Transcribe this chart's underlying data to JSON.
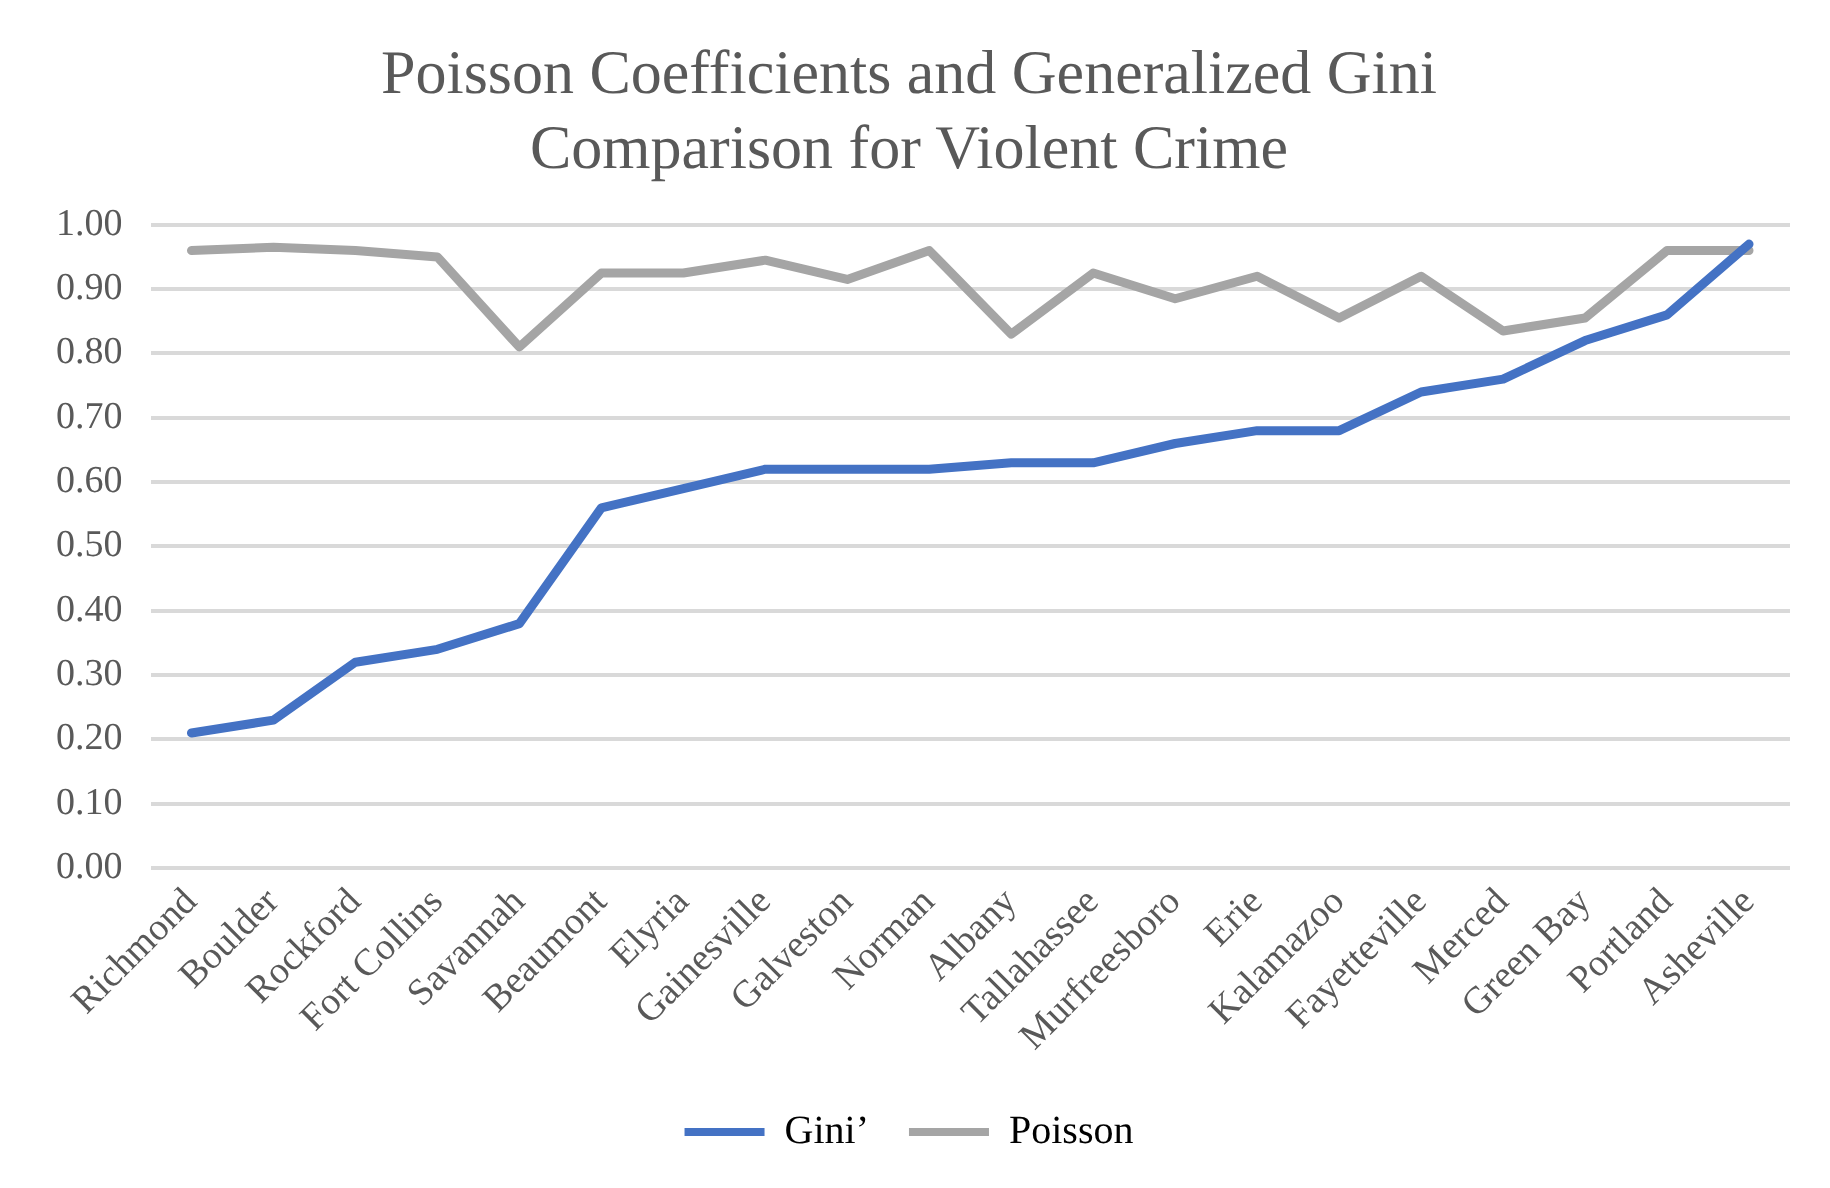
{
  "chart_data": {
    "type": "line",
    "title": [
      "Poisson Coefficients and Generalized Gini",
      "Comparison for Violent Crime"
    ],
    "categories": [
      "Richmond",
      "Boulder",
      "Rockford",
      "Fort Collins",
      "Savannah",
      "Beaumont",
      "Elyria",
      "Gainesville",
      "Galveston",
      "Norman",
      "Albany",
      "Tallahassee",
      "Murfreesboro",
      "Erie",
      "Kalamazoo",
      "Fayetteville",
      "Merced",
      "Green Bay",
      "Portland",
      "Asheville"
    ],
    "series": [
      {
        "name": "Gini’",
        "color": "#4472c4",
        "values": [
          0.21,
          0.23,
          0.32,
          0.34,
          0.38,
          0.56,
          0.59,
          0.62,
          0.62,
          0.62,
          0.63,
          0.63,
          0.66,
          0.68,
          0.68,
          0.74,
          0.76,
          0.82,
          0.86,
          0.97
        ]
      },
      {
        "name": "Poisson",
        "color": "#a5a5a5",
        "values": [
          0.96,
          0.965,
          0.96,
          0.95,
          0.81,
          0.925,
          0.925,
          0.945,
          0.915,
          0.96,
          0.83,
          0.925,
          0.885,
          0.92,
          0.855,
          0.92,
          0.835,
          0.855,
          0.96,
          0.96
        ]
      }
    ],
    "ylim": [
      0,
      1
    ],
    "yticks": [
      {
        "value": 0,
        "label": "0.00"
      },
      {
        "value": 0.1,
        "label": "0.10"
      },
      {
        "value": 0.2,
        "label": "0.20"
      },
      {
        "value": 0.3,
        "label": "0.30"
      },
      {
        "value": 0.4,
        "label": "0.40"
      },
      {
        "value": 0.5,
        "label": "0.50"
      },
      {
        "value": 0.6,
        "label": "0.60"
      },
      {
        "value": 0.7,
        "label": "0.70"
      },
      {
        "value": 0.8,
        "label": "0.80"
      },
      {
        "value": 0.9,
        "label": "0.90"
      },
      {
        "value": 1,
        "label": "1.00"
      }
    ],
    "grid": "y",
    "legend": "bottom",
    "marker": "none",
    "line_style": "solid"
  }
}
